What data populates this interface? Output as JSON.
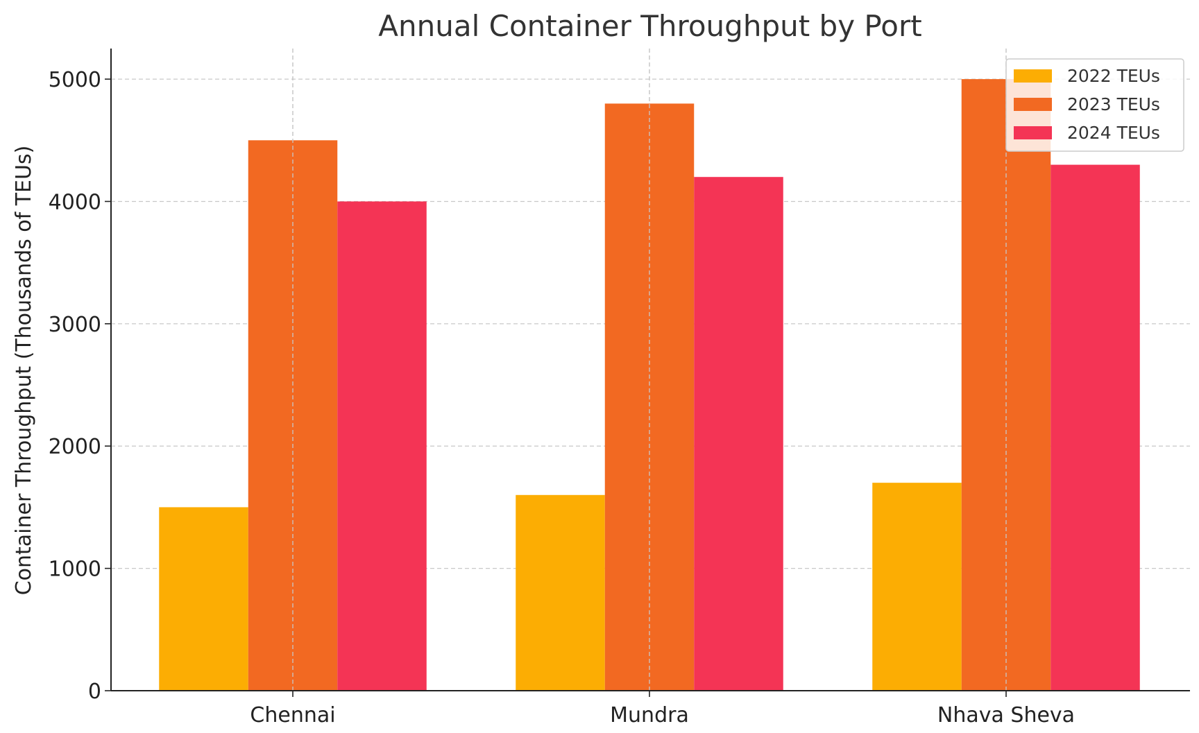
{
  "chart_data": {
    "type": "bar",
    "title": "Annual Container Throughput by Port",
    "xlabel": "",
    "ylabel": "Container Throughput (Thousands of TEUs)",
    "categories": [
      "Chennai",
      "Mundra",
      "Nhava Sheva"
    ],
    "series": [
      {
        "name": "2022 TEUs",
        "color": "#FCAD03",
        "values": [
          1500,
          1600,
          1700
        ]
      },
      {
        "name": "2023 TEUs",
        "color": "#F26922",
        "values": [
          4500,
          4800,
          5000
        ]
      },
      {
        "name": "2024 TEUs",
        "color": "#F43455",
        "values": [
          4000,
          4200,
          4300
        ]
      }
    ],
    "ylim": [
      0,
      5250
    ],
    "yticks": [
      0,
      1000,
      2000,
      3000,
      4000,
      5000
    ],
    "grid": true,
    "legend_position": "top-right"
  }
}
